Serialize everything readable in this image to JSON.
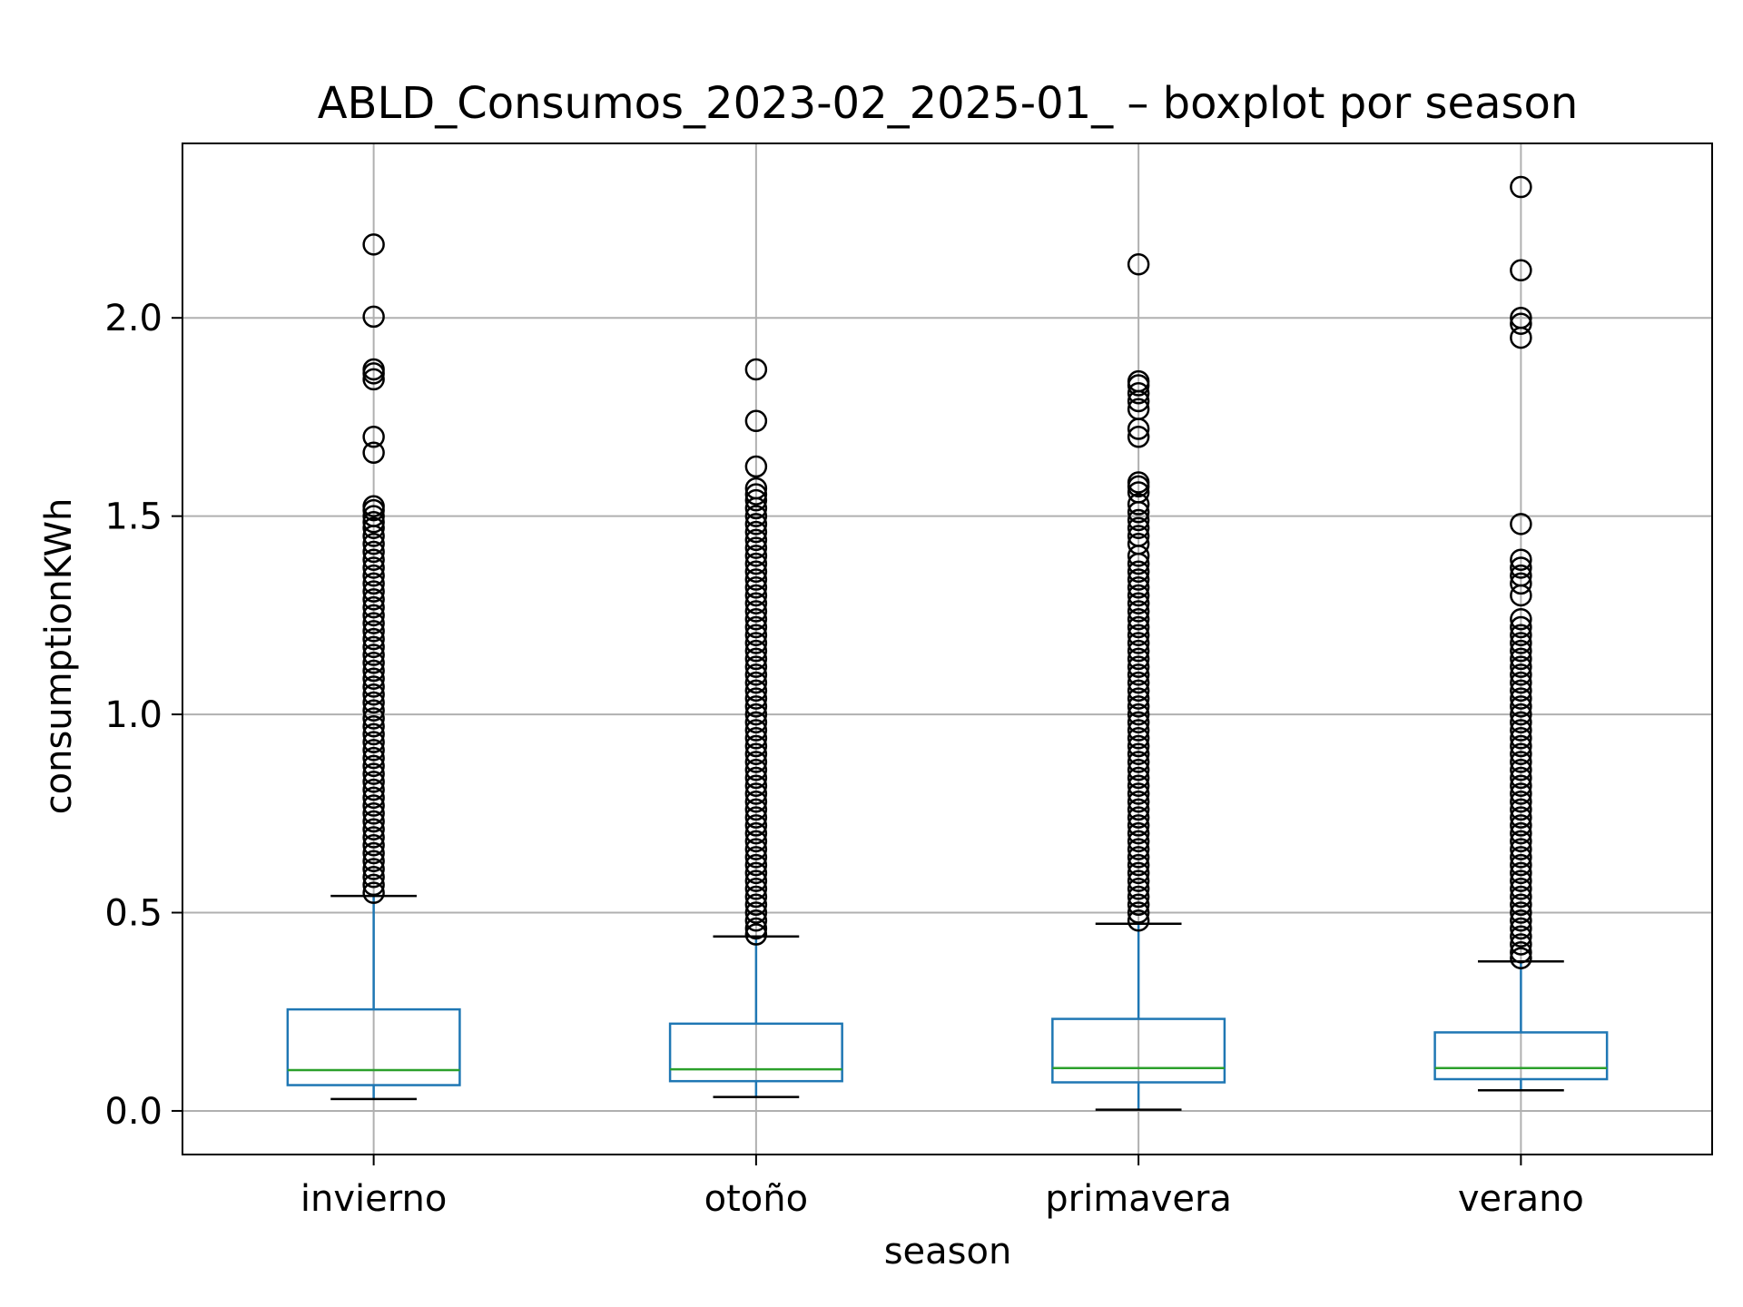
{
  "chart_data": {
    "type": "boxplot",
    "title": "ABLD_Consumos_2023-02_2025-01_ – boxplot por season",
    "xlabel": "season",
    "ylabel": "consumptionKWh",
    "ylim": [
      -0.11,
      2.44
    ],
    "yticks": [
      0.0,
      0.5,
      1.0,
      1.5,
      2.0
    ],
    "ytick_labels": [
      "0.0",
      "0.5",
      "1.0",
      "1.5",
      "2.0"
    ],
    "grid": true,
    "categories": [
      "invierno",
      "otoño",
      "primavera",
      "verano"
    ],
    "boxes": [
      {
        "category": "invierno",
        "whisker_low": 0.03,
        "q1": 0.065,
        "median": 0.103,
        "q3": 0.256,
        "whisker_high": 0.542,
        "outliers": [
          2.185,
          2.003,
          1.87,
          1.86,
          1.845,
          1.7,
          1.66,
          1.525,
          1.515,
          1.5,
          1.485,
          1.47,
          1.45,
          1.43,
          1.41,
          1.39,
          1.37,
          1.35,
          1.33,
          1.31,
          1.29,
          1.27,
          1.25,
          1.23,
          1.21,
          1.19,
          1.17,
          1.15,
          1.13,
          1.11,
          1.09,
          1.07,
          1.05,
          1.03,
          1.01,
          0.99,
          0.97,
          0.95,
          0.93,
          0.91,
          0.89,
          0.87,
          0.85,
          0.83,
          0.81,
          0.79,
          0.77,
          0.75,
          0.73,
          0.71,
          0.69,
          0.67,
          0.65,
          0.63,
          0.61,
          0.59,
          0.57,
          0.55
        ]
      },
      {
        "category": "otoño",
        "whisker_low": 0.035,
        "q1": 0.075,
        "median": 0.105,
        "q3": 0.22,
        "whisker_high": 0.44,
        "outliers": [
          1.87,
          1.74,
          1.625,
          1.57,
          1.555,
          1.54,
          1.52,
          1.5,
          1.48,
          1.46,
          1.44,
          1.42,
          1.4,
          1.38,
          1.36,
          1.34,
          1.32,
          1.3,
          1.28,
          1.26,
          1.24,
          1.22,
          1.2,
          1.18,
          1.16,
          1.14,
          1.12,
          1.1,
          1.08,
          1.06,
          1.04,
          1.02,
          1.0,
          0.98,
          0.96,
          0.94,
          0.92,
          0.9,
          0.88,
          0.86,
          0.84,
          0.82,
          0.8,
          0.78,
          0.76,
          0.74,
          0.72,
          0.7,
          0.68,
          0.66,
          0.64,
          0.62,
          0.6,
          0.58,
          0.56,
          0.54,
          0.52,
          0.5,
          0.48,
          0.46,
          0.445
        ]
      },
      {
        "category": "primavera",
        "whisker_low": 0.003,
        "q1": 0.072,
        "median": 0.108,
        "q3": 0.232,
        "whisker_high": 0.472,
        "outliers": [
          2.135,
          1.84,
          1.83,
          1.81,
          1.79,
          1.77,
          1.72,
          1.7,
          1.585,
          1.575,
          1.56,
          1.53,
          1.51,
          1.49,
          1.47,
          1.45,
          1.43,
          1.4,
          1.38,
          1.36,
          1.34,
          1.32,
          1.3,
          1.28,
          1.26,
          1.24,
          1.22,
          1.2,
          1.18,
          1.16,
          1.14,
          1.12,
          1.1,
          1.08,
          1.06,
          1.04,
          1.02,
          1.0,
          0.98,
          0.96,
          0.94,
          0.92,
          0.9,
          0.88,
          0.86,
          0.84,
          0.82,
          0.8,
          0.78,
          0.76,
          0.74,
          0.72,
          0.7,
          0.68,
          0.66,
          0.64,
          0.62,
          0.6,
          0.58,
          0.56,
          0.54,
          0.52,
          0.5,
          0.48
        ]
      },
      {
        "category": "verano",
        "whisker_low": 0.052,
        "q1": 0.08,
        "median": 0.108,
        "q3": 0.198,
        "whisker_high": 0.377,
        "outliers": [
          2.33,
          2.12,
          2.0,
          1.985,
          1.95,
          1.48,
          1.39,
          1.37,
          1.35,
          1.33,
          1.3,
          1.24,
          1.22,
          1.2,
          1.18,
          1.16,
          1.14,
          1.12,
          1.1,
          1.08,
          1.06,
          1.04,
          1.02,
          1.0,
          0.98,
          0.96,
          0.94,
          0.92,
          0.9,
          0.88,
          0.86,
          0.84,
          0.82,
          0.8,
          0.78,
          0.76,
          0.74,
          0.72,
          0.7,
          0.68,
          0.66,
          0.64,
          0.62,
          0.6,
          0.58,
          0.56,
          0.54,
          0.52,
          0.5,
          0.48,
          0.46,
          0.44,
          0.42,
          0.4,
          0.385
        ]
      }
    ],
    "colors": {
      "box": "#1f77b4",
      "median": "#2ca02c",
      "whisker_cap": "#000000",
      "outlier_edge": "#000000",
      "grid": "#b0b0b0",
      "axes": "#000000"
    }
  }
}
